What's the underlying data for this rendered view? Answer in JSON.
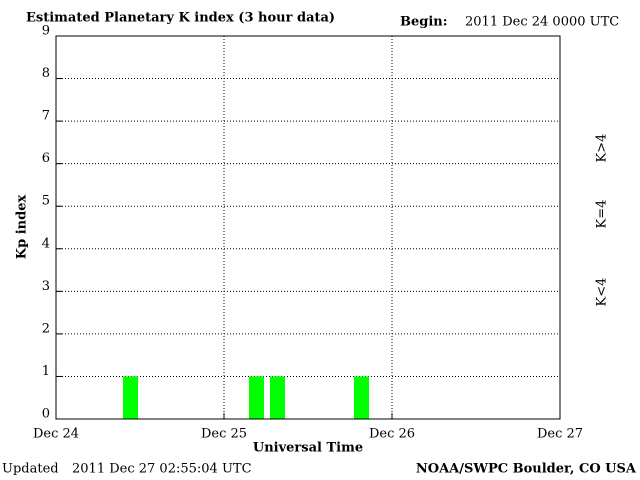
{
  "chart_data": {
    "type": "bar",
    "title": "Estimated Planetary K index (3 hour data)",
    "begin_label": "Begin:",
    "begin_value": "2011 Dec 24 0000 UTC",
    "ylabel": "Kp index",
    "xlabel": "Universal Time",
    "updated_label": "Updated",
    "updated_value": "2011 Dec 27 02:55:04 UTC",
    "source": "NOAA/SWPC Boulder, CO USA",
    "x": [
      0,
      3,
      6,
      9,
      12,
      15,
      18,
      21,
      24,
      27,
      30,
      33,
      36,
      39,
      42,
      45,
      48,
      51,
      54,
      57,
      60,
      63,
      66,
      69
    ],
    "bin_width": 3,
    "values": [
      0,
      0,
      0,
      1,
      0,
      0,
      0,
      0,
      0,
      1,
      1,
      0,
      0,
      0,
      1,
      0,
      0,
      0,
      0,
      0,
      0,
      0,
      0,
      0
    ],
    "color": "#00ff00",
    "xlim": [
      0,
      72
    ],
    "xticks": [
      {
        "value": 0,
        "label": "Dec 24"
      },
      {
        "value": 24,
        "label": "Dec 25"
      },
      {
        "value": 48,
        "label": "Dec 26"
      },
      {
        "value": 72,
        "label": "Dec 27"
      }
    ],
    "ylim": [
      0,
      9
    ],
    "yticks": [
      0,
      1,
      2,
      3,
      4,
      5,
      6,
      7,
      8,
      9
    ],
    "grid": true,
    "legend": [
      {
        "label": "K<4",
        "color": "#00ee00"
      },
      {
        "label": "K=4",
        "color": "#ffcc00"
      },
      {
        "label": "K>4",
        "color": "#ff2a00"
      }
    ]
  }
}
